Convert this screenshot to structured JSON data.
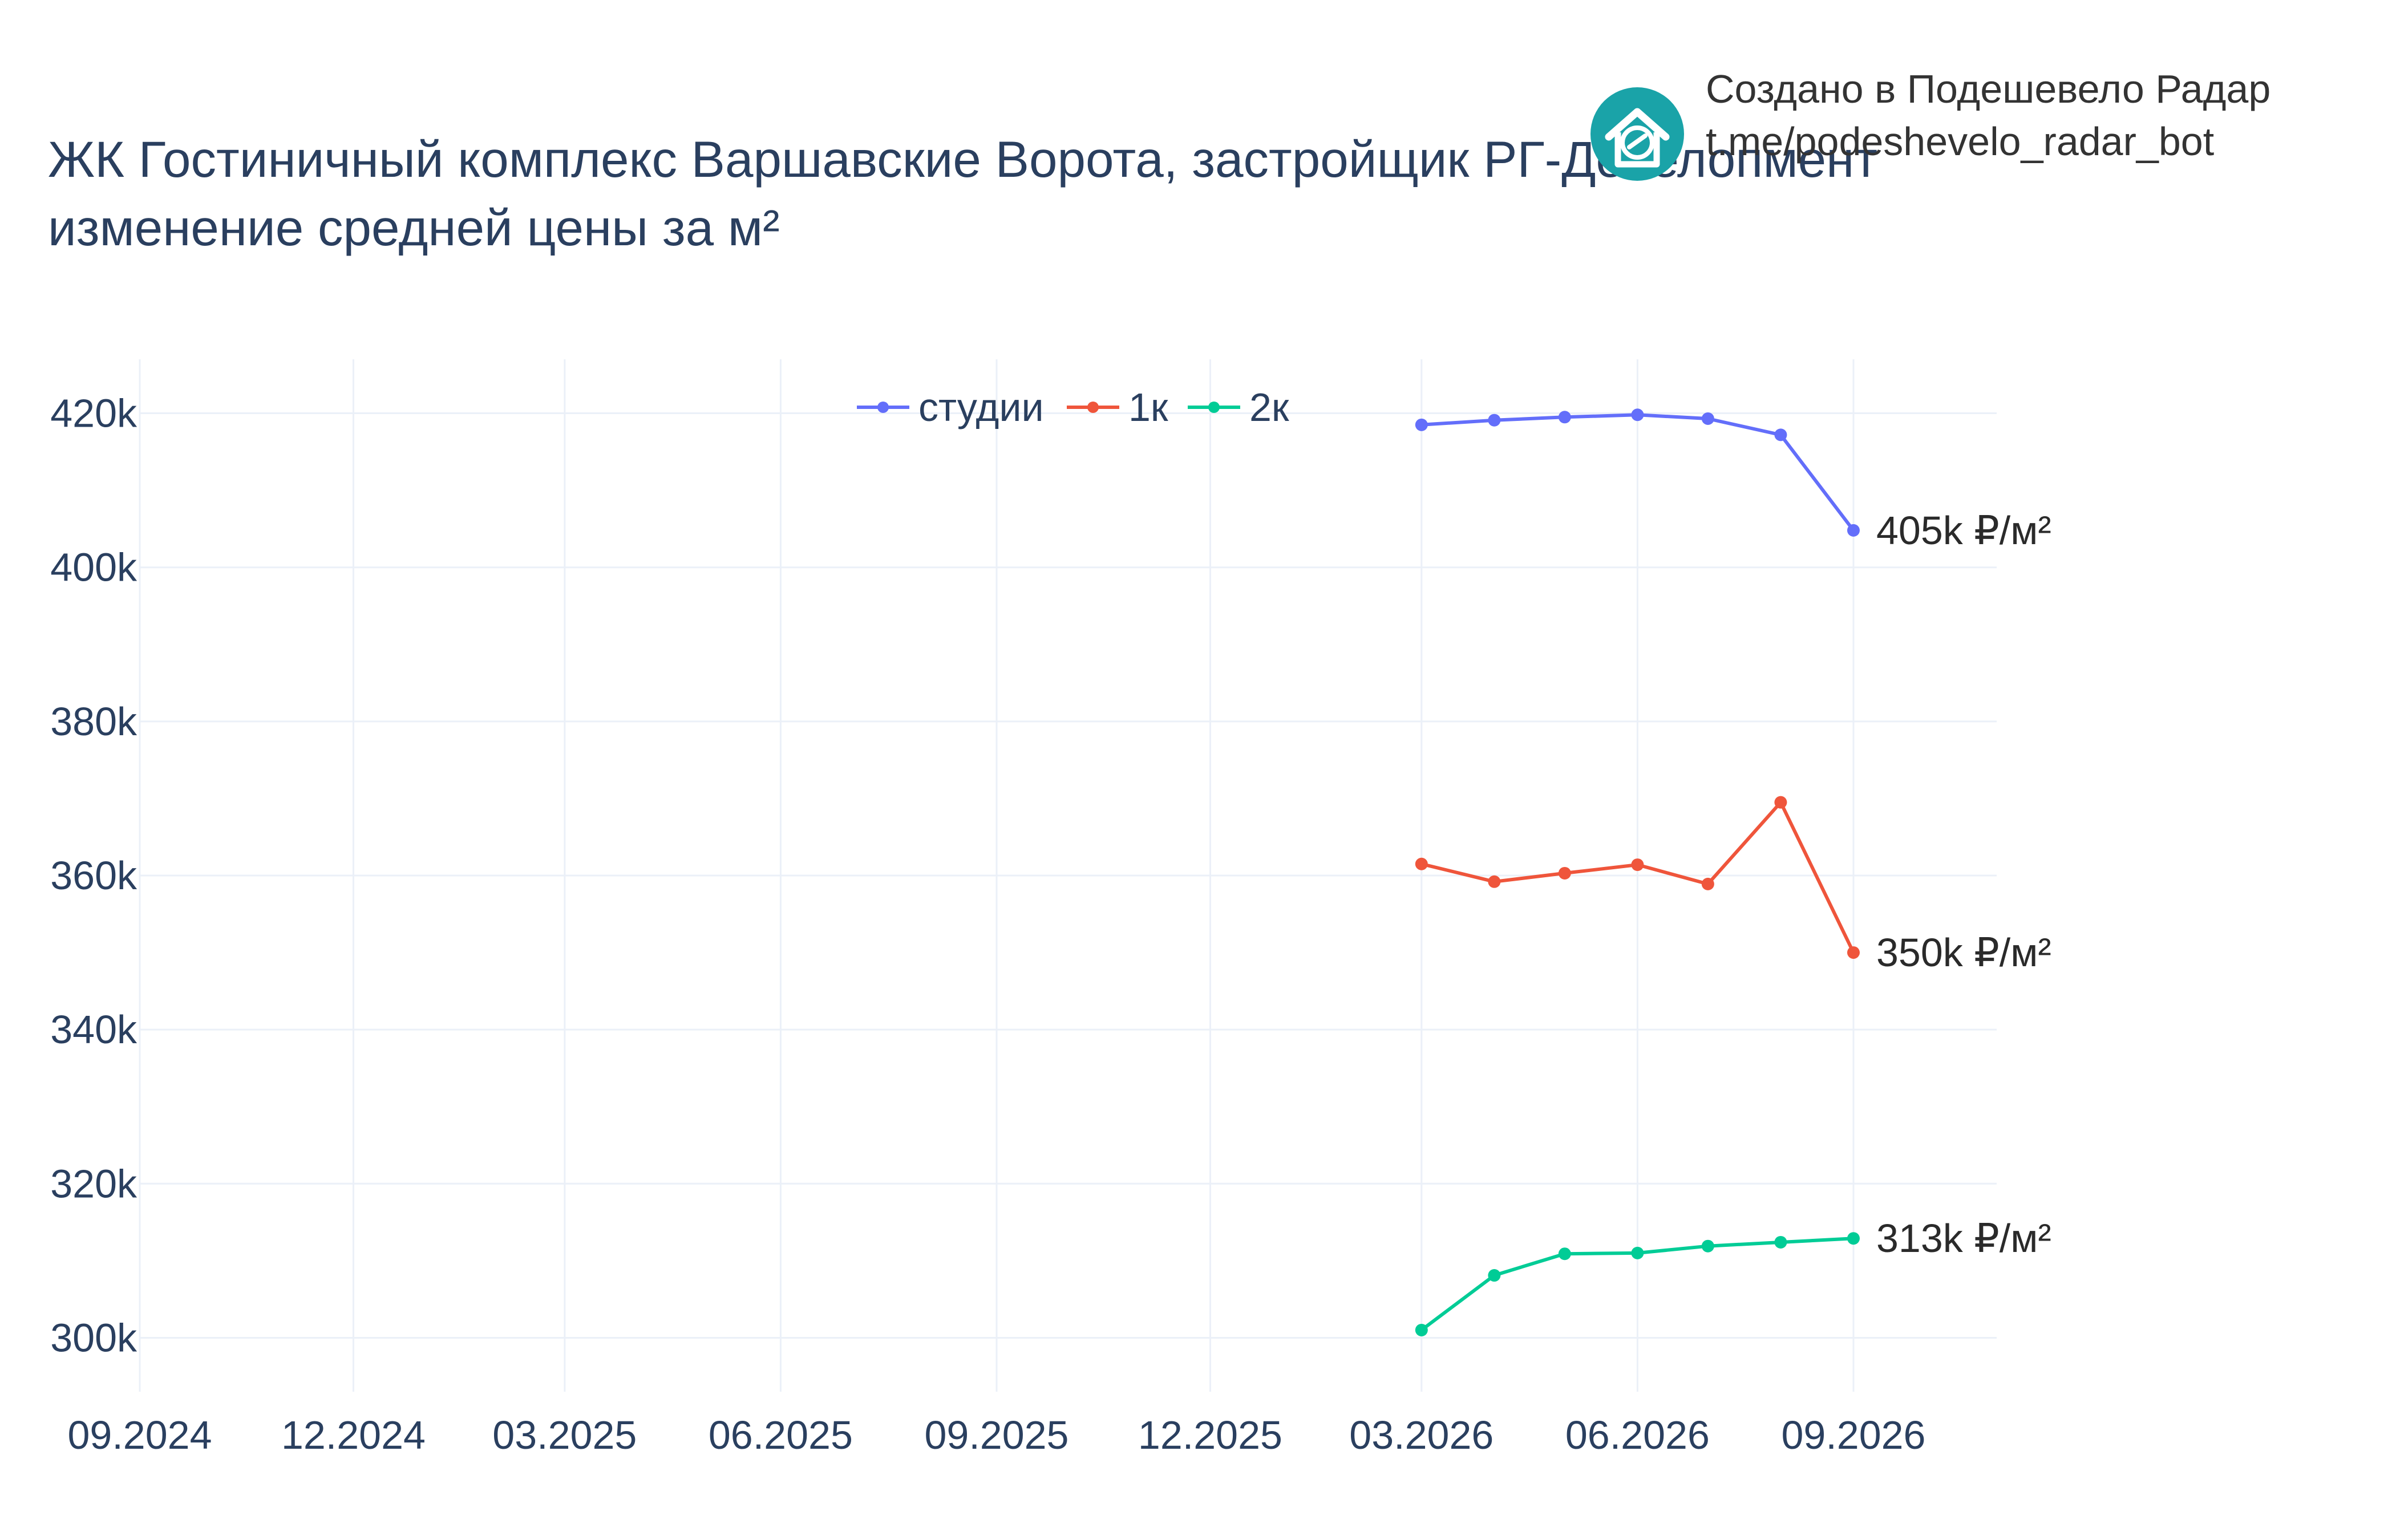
{
  "title": {
    "line1": "ЖК Гостиничный комплекс Варшавские Ворота, застройщик РГ-Девелопмент",
    "line2": "изменение средней цены за м²"
  },
  "credit": {
    "line1": "Создано в Подешевело Радар",
    "line2": "t.me/podeshevelo_radar_bot",
    "logo_icon": "house-arrow-icon",
    "logo_color": "#1aa3a8"
  },
  "chart_data": {
    "type": "line",
    "x_axis": {
      "type": "date",
      "range": [
        "2024-09-01",
        "2026-11-01"
      ],
      "ticks": [
        {
          "date": "2024-09-01",
          "label": "09.2024"
        },
        {
          "date": "2024-12-01",
          "label": "12.2024"
        },
        {
          "date": "2025-03-01",
          "label": "03.2025"
        },
        {
          "date": "2025-06-01",
          "label": "06.2025"
        },
        {
          "date": "2025-09-01",
          "label": "09.2025"
        },
        {
          "date": "2025-12-01",
          "label": "12.2025"
        },
        {
          "date": "2026-03-01",
          "label": "03.2026"
        },
        {
          "date": "2026-06-01",
          "label": "06.2026"
        },
        {
          "date": "2026-09-01",
          "label": "09.2026"
        }
      ]
    },
    "y_axis": {
      "range": [
        293000,
        427000
      ],
      "ticks": [
        {
          "value": 300000,
          "label": "300k"
        },
        {
          "value": 320000,
          "label": "320k"
        },
        {
          "value": 340000,
          "label": "340k"
        },
        {
          "value": 360000,
          "label": "360k"
        },
        {
          "value": 380000,
          "label": "380k"
        },
        {
          "value": 400000,
          "label": "400k"
        },
        {
          "value": 420000,
          "label": "420k"
        }
      ]
    },
    "grid": true,
    "legend": {
      "placement": "top-center",
      "orientation": "horizontal"
    },
    "series": [
      {
        "name": "студии",
        "color": "#636efa",
        "end_label": "405k ₽/м²",
        "points": [
          {
            "x": "2026-03-01",
            "y": 418500
          },
          {
            "x": "2026-04-01",
            "y": 419100
          },
          {
            "x": "2026-05-01",
            "y": 419500
          },
          {
            "x": "2026-06-01",
            "y": 419800
          },
          {
            "x": "2026-07-01",
            "y": 419300
          },
          {
            "x": "2026-08-01",
            "y": 417200
          },
          {
            "x": "2026-09-01",
            "y": 404800
          }
        ]
      },
      {
        "name": "1к",
        "color": "#ef553b",
        "end_label": "350k ₽/м²",
        "points": [
          {
            "x": "2026-03-01",
            "y": 361500
          },
          {
            "x": "2026-04-01",
            "y": 359200
          },
          {
            "x": "2026-05-01",
            "y": 360300
          },
          {
            "x": "2026-06-01",
            "y": 361400
          },
          {
            "x": "2026-07-01",
            "y": 358900
          },
          {
            "x": "2026-08-01",
            "y": 369500
          },
          {
            "x": "2026-09-01",
            "y": 350000
          }
        ]
      },
      {
        "name": "2к",
        "color": "#00cc96",
        "end_label": "313k ₽/м²",
        "points": [
          {
            "x": "2026-03-01",
            "y": 301000
          },
          {
            "x": "2026-04-01",
            "y": 308100
          },
          {
            "x": "2026-05-01",
            "y": 310900
          },
          {
            "x": "2026-06-01",
            "y": 311000
          },
          {
            "x": "2026-07-01",
            "y": 311900
          },
          {
            "x": "2026-08-01",
            "y": 312400
          },
          {
            "x": "2026-09-01",
            "y": 312900
          }
        ]
      }
    ]
  }
}
